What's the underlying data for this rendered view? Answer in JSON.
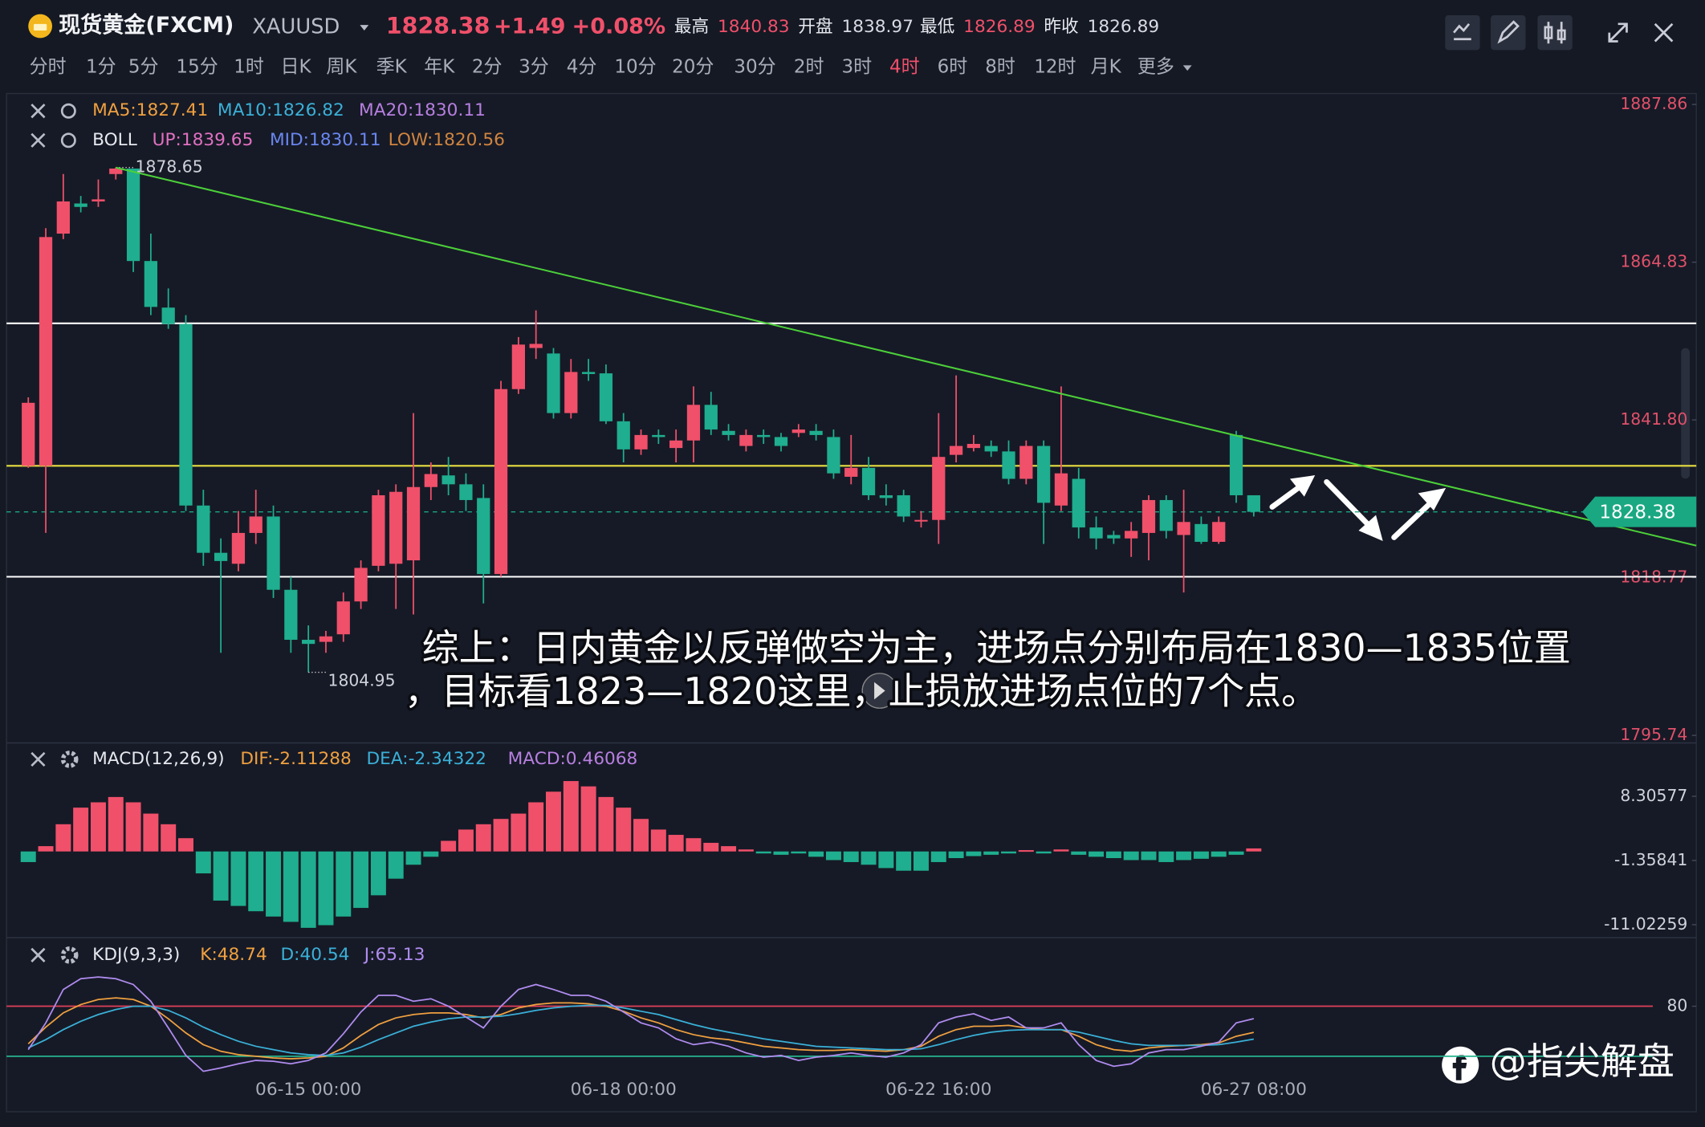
{
  "header": {
    "name": "现货黄金(FXCM)",
    "symbol": "XAUUSD",
    "price": "1828.38",
    "change": "+1.49",
    "change_pct": "+0.08%",
    "stats": [
      {
        "label": "最高",
        "value": "1840.83",
        "color": "#f0506a"
      },
      {
        "label": "开盘",
        "value": "1838.97",
        "color": "#d8dbe3"
      },
      {
        "label": "最低",
        "value": "1826.89",
        "color": "#f0506a"
      },
      {
        "label": "昨收",
        "value": "1826.89",
        "color": "#d8dbe3"
      }
    ]
  },
  "tabs": [
    "分时",
    "1分",
    "5分",
    "15分",
    "1时",
    "日K",
    "周K",
    "季K",
    "年K",
    "2分",
    "3分",
    "4分",
    "10分",
    "20分",
    "30分",
    "2时",
    "3时",
    "4时",
    "6时",
    "8时",
    "12时",
    "月K",
    "更多"
  ],
  "active_tab": 17,
  "note": [
    "综上：日内黄金以反弹做空为主，进场点分别布局在1830—1835位置",
    "，目标看1823—1820这里，止损放进场点位的7个点。"
  ],
  "watermark": "@指尖解盘",
  "chart_data": [
    {
      "type": "candlestick",
      "up_color": "#f0506a",
      "down_color": "#1fae8f",
      "legend": [
        [
          {
            "text": "MA5:1827.41",
            "color": "#f0a040"
          },
          {
            "text": "MA10:1826.82",
            "color": "#3ab0d8"
          },
          {
            "text": "MA20:1830.11",
            "color": "#b77fe0"
          }
        ],
        [
          {
            "text": "BOLL",
            "color": "#e6e8ee"
          },
          {
            "text": "UP:1839.65",
            "color": "#e070c0"
          },
          {
            "text": "MID:1830.11",
            "color": "#6a86f0"
          },
          {
            "text": "LOW:1820.56",
            "color": "#d0843f"
          }
        ]
      ],
      "open": [
        1835.1,
        1835.1,
        1869.0,
        1873.4,
        1873.7,
        1877.7,
        1878.5,
        1865.0,
        1858.2,
        1855.8,
        1829.3,
        1822.4,
        1820.8,
        1825.3,
        1827.7,
        1817.0,
        1809.7,
        1809.4,
        1810.5,
        1815.3,
        1820.5,
        1820.8,
        1821.3,
        1832.0,
        1833.7,
        1832.4,
        1830.4,
        1819.3,
        1846.3,
        1852.3,
        1851.5,
        1842.8,
        1848.8,
        1848.6,
        1841.6,
        1837.5,
        1839.6,
        1837.7,
        1838.8,
        1844.0,
        1840.2,
        1838.0,
        1839.6,
        1839.3,
        1839.9,
        1840.2,
        1839.3,
        1833.5,
        1834.8,
        1830.8,
        1830.8,
        1827.2,
        1827.2,
        1836.7,
        1837.7,
        1838.0,
        1837.2,
        1833.2,
        1838.0,
        1829.3,
        1833.2,
        1826.1,
        1825.0,
        1824.5,
        1825.3,
        1830.1,
        1825.0,
        1826.6,
        1824.0,
        1839.6,
        1830.8
      ],
      "close": [
        1844.3,
        1868.5,
        1873.7,
        1872.9,
        1874.0,
        1878.5,
        1865.0,
        1858.3,
        1855.8,
        1829.3,
        1822.4,
        1821.2,
        1825.3,
        1827.7,
        1817.0,
        1809.7,
        1809.1,
        1810.2,
        1815.3,
        1820.2,
        1830.8,
        1831.3,
        1832.0,
        1833.9,
        1832.4,
        1830.1,
        1819.3,
        1846.3,
        1852.8,
        1852.9,
        1842.8,
        1848.8,
        1848.5,
        1841.6,
        1837.5,
        1839.6,
        1839.3,
        1838.8,
        1844.0,
        1840.4,
        1839.6,
        1839.6,
        1839.3,
        1838.0,
        1840.4,
        1839.6,
        1834.0,
        1834.8,
        1830.8,
        1830.4,
        1827.7,
        1827.2,
        1836.4,
        1838.0,
        1838.3,
        1837.2,
        1833.2,
        1838.0,
        1829.7,
        1834.0,
        1826.1,
        1824.5,
        1824.5,
        1825.6,
        1830.1,
        1825.6,
        1826.9,
        1824.0,
        1826.9,
        1830.8,
        1828.38
      ],
      "high": [
        1845.1,
        1869.8,
        1877.7,
        1874.5,
        1876.9,
        1878.65,
        1878.5,
        1869.0,
        1861.0,
        1857.1,
        1831.6,
        1824.5,
        1828.5,
        1831.6,
        1829.3,
        1818.9,
        1811.8,
        1811.0,
        1816.6,
        1821.3,
        1831.6,
        1832.4,
        1842.8,
        1835.6,
        1836.4,
        1834.0,
        1832.4,
        1847.5,
        1853.9,
        1857.8,
        1852.3,
        1850.7,
        1850.7,
        1849.9,
        1842.8,
        1840.4,
        1840.4,
        1840.4,
        1846.7,
        1845.9,
        1841.2,
        1840.4,
        1840.4,
        1839.9,
        1841.2,
        1841.2,
        1840.4,
        1839.6,
        1836.4,
        1832.4,
        1831.6,
        1828.5,
        1842.8,
        1848.3,
        1839.6,
        1838.8,
        1838.8,
        1838.8,
        1838.8,
        1846.7,
        1834.8,
        1827.7,
        1825.6,
        1826.9,
        1830.8,
        1830.8,
        1831.6,
        1827.7,
        1827.7,
        1840.2,
        1830.8
      ],
      "low": [
        1834.8,
        1825.3,
        1868.2,
        1872.1,
        1872.9,
        1876.9,
        1863.4,
        1857.1,
        1855.1,
        1828.5,
        1820.5,
        1807.8,
        1819.7,
        1823.7,
        1815.8,
        1807.8,
        1804.95,
        1807.8,
        1809.4,
        1814.2,
        1819.7,
        1814.2,
        1813.4,
        1830.1,
        1830.8,
        1828.5,
        1815.0,
        1818.9,
        1845.6,
        1850.7,
        1842.0,
        1842.0,
        1847.5,
        1841.2,
        1835.6,
        1836.7,
        1838.3,
        1835.6,
        1835.6,
        1839.6,
        1838.8,
        1837.2,
        1838.3,
        1837.2,
        1839.3,
        1838.8,
        1833.2,
        1832.4,
        1830.1,
        1829.3,
        1826.9,
        1826.1,
        1823.7,
        1835.6,
        1837.2,
        1836.4,
        1832.4,
        1832.4,
        1823.7,
        1828.5,
        1824.5,
        1822.9,
        1823.7,
        1821.8,
        1821.3,
        1824.5,
        1816.6,
        1823.7,
        1823.7,
        1829.7,
        1827.7
      ],
      "ylim": [
        1794.79,
        1889.45
      ],
      "yticks": [
        1887.86,
        1864.83,
        {
          "value": 1841.8,
          "label": "1841.80"
        },
        1818.77,
        1795.74
      ],
      "levels": [
        {
          "value": 1855.9,
          "color": "#ffffff"
        },
        {
          "value": 1835.1,
          "color": "#e8e040"
        },
        {
          "value": 1818.9,
          "color": "#ffffff"
        }
      ],
      "trendline": {
        "color": "#4cd03a",
        "points": [
          [
            5,
            1878.65
          ],
          [
            70,
            1838.9
          ]
        ]
      },
      "price_tag_color": "#1aa882"
    },
    {
      "type": "bar",
      "up_color": "#f0506a",
      "down_color": "#1fae8f",
      "legend": [
        {
          "text": "MACD(12,26,9)",
          "color": "#e6e8ee"
        },
        {
          "text": "DIF:-2.11288",
          "color": "#f0a040"
        },
        {
          "text": "DEA:-2.34322",
          "color": "#3ab0d8"
        },
        {
          "text": "MACD:0.46068",
          "color": "#b77fe0"
        }
      ],
      "values": [
        -1.6,
        0.8,
        4.1,
        6.6,
        7.4,
        8.2,
        7.4,
        5.7,
        4.1,
        2.0,
        -3.3,
        -7.4,
        -8.2,
        -9.0,
        -9.8,
        -10.6,
        -11.5,
        -11.1,
        -9.8,
        -8.5,
        -6.6,
        -4.1,
        -2.0,
        -0.8,
        1.6,
        3.3,
        4.1,
        4.9,
        5.7,
        7.4,
        9.0,
        10.6,
        9.8,
        8.2,
        6.6,
        4.9,
        3.3,
        2.5,
        2.0,
        1.3,
        0.8,
        0.3,
        -0.3,
        -0.5,
        -0.3,
        -0.8,
        -1.3,
        -1.6,
        -2.0,
        -2.5,
        -2.9,
        -2.9,
        -1.6,
        -1.0,
        -0.7,
        -0.5,
        -0.3,
        0.2,
        -0.3,
        0.3,
        -0.5,
        -0.8,
        -1.0,
        -1.3,
        -1.3,
        -1.6,
        -1.3,
        -1.1,
        -0.8,
        -0.5,
        0.46068
      ],
      "ylim": [
        -12.66,
        15.84
      ],
      "yticks": [
        8.30577,
        -1.35841,
        -11.02259
      ]
    },
    {
      "type": "line",
      "legend": [
        {
          "text": "KDJ(9,3,3)",
          "color": "#e6e8ee"
        }
      ],
      "categories": [
        null,
        null,
        null,
        null,
        null,
        null,
        null,
        null,
        null,
        null,
        null,
        null,
        null,
        null,
        null,
        null,
        "06-15 00:00",
        null,
        null,
        null,
        null,
        null,
        null,
        null,
        null,
        null,
        null,
        null,
        null,
        null,
        null,
        null,
        null,
        null,
        "06-18 00:00",
        null,
        null,
        null,
        null,
        null,
        null,
        null,
        null,
        null,
        null,
        null,
        null,
        null,
        null,
        null,
        null,
        null,
        "06-22 16:00",
        null,
        null,
        null,
        null,
        null,
        null,
        null,
        null,
        null,
        null,
        null,
        null,
        null,
        null,
        null,
        null,
        null,
        "06-27 08:00"
      ],
      "series": [
        {
          "name": "K:48.74",
          "color": "#f0a040",
          "values": [
            35,
            55,
            72,
            82,
            88,
            90,
            88,
            80,
            65,
            48,
            34,
            26,
            22,
            20,
            18,
            17,
            18,
            20,
            30,
            45,
            58,
            66,
            70,
            72,
            72,
            70,
            66,
            70,
            78,
            82,
            84,
            84,
            83,
            80,
            74,
            66,
            60,
            52,
            46,
            42,
            40,
            36,
            32,
            30,
            28,
            27,
            27,
            28,
            27,
            26,
            28,
            32,
            44,
            52,
            56,
            56,
            57,
            54,
            52,
            52,
            44,
            34,
            28,
            26,
            30,
            32,
            33,
            34,
            36,
            44,
            48.74
          ]
        },
        {
          "name": "D:40.54",
          "color": "#3ab0d8",
          "values": [
            30,
            40,
            52,
            62,
            70,
            76,
            80,
            80,
            75,
            66,
            55,
            46,
            38,
            32,
            28,
            24,
            22,
            21,
            24,
            31,
            40,
            48,
            56,
            61,
            65,
            67,
            67,
            68,
            71,
            75,
            78,
            80,
            81,
            81,
            78,
            74,
            70,
            64,
            58,
            53,
            49,
            45,
            41,
            38,
            35,
            32,
            31,
            30,
            29,
            28,
            28,
            29,
            34,
            40,
            45,
            49,
            51,
            52,
            52,
            52,
            49,
            44,
            39,
            35,
            33,
            33,
            33,
            33,
            34,
            37,
            40.54
          ]
        },
        {
          "name": "J:65.13",
          "color": "#b08cf0",
          "values": [
            28,
            60,
            100,
            113,
            115,
            113,
            106,
            86,
            54,
            21,
            2,
            6,
            11,
            15,
            14,
            11,
            15,
            24,
            47,
            73,
            93,
            93,
            86,
            89,
            80,
            67,
            54,
            80,
            100,
            106,
            100,
            93,
            93,
            86,
            73,
            60,
            54,
            41,
            34,
            37,
            32,
            24,
            19,
            21,
            15,
            19,
            21,
            24,
            21,
            19,
            24,
            34,
            60,
            67,
            71,
            63,
            67,
            54,
            54,
            60,
            34,
            15,
            8,
            11,
            24,
            28,
            28,
            32,
            37,
            60,
            65.13
          ]
        }
      ],
      "ylim": [
        -43.9,
        156.9
      ],
      "yticks": [
        80
      ],
      "hlines": [
        {
          "value": 80,
          "color": "#e0405a"
        },
        {
          "value": 20,
          "color": "#26b38e"
        }
      ]
    }
  ]
}
